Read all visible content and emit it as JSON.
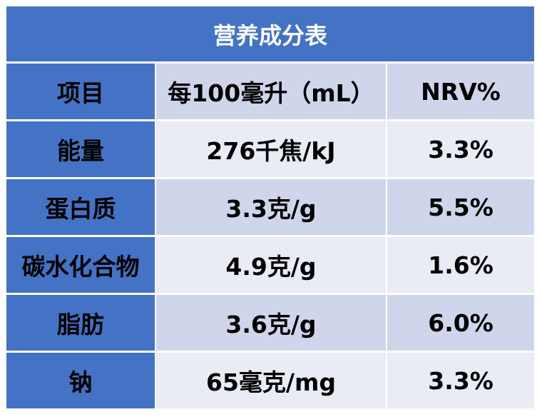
{
  "title": "营养成分表",
  "header": {
    "col1": "项目",
    "col2": "每100毫升（mL）",
    "col3": "NRV%"
  },
  "rows": [
    {
      "item": "能量",
      "amount": "276千焦/kJ",
      "nrv": "3.3%"
    },
    {
      "item": "蛋白质",
      "amount": "3.3克/g",
      "nrv": "5.5%"
    },
    {
      "item": "碳水化合物",
      "amount": "4.9克/g",
      "nrv": "1.6%"
    },
    {
      "item": "脂肪",
      "amount": "3.6克/g",
      "nrv": "6.0%"
    },
    {
      "item": "钠",
      "amount": "65毫克/mg",
      "nrv": "3.3%"
    }
  ],
  "colors": {
    "header_blue": "#4472c4",
    "band_dark": "#cfd5ea",
    "band_light": "#e9ebf5"
  }
}
